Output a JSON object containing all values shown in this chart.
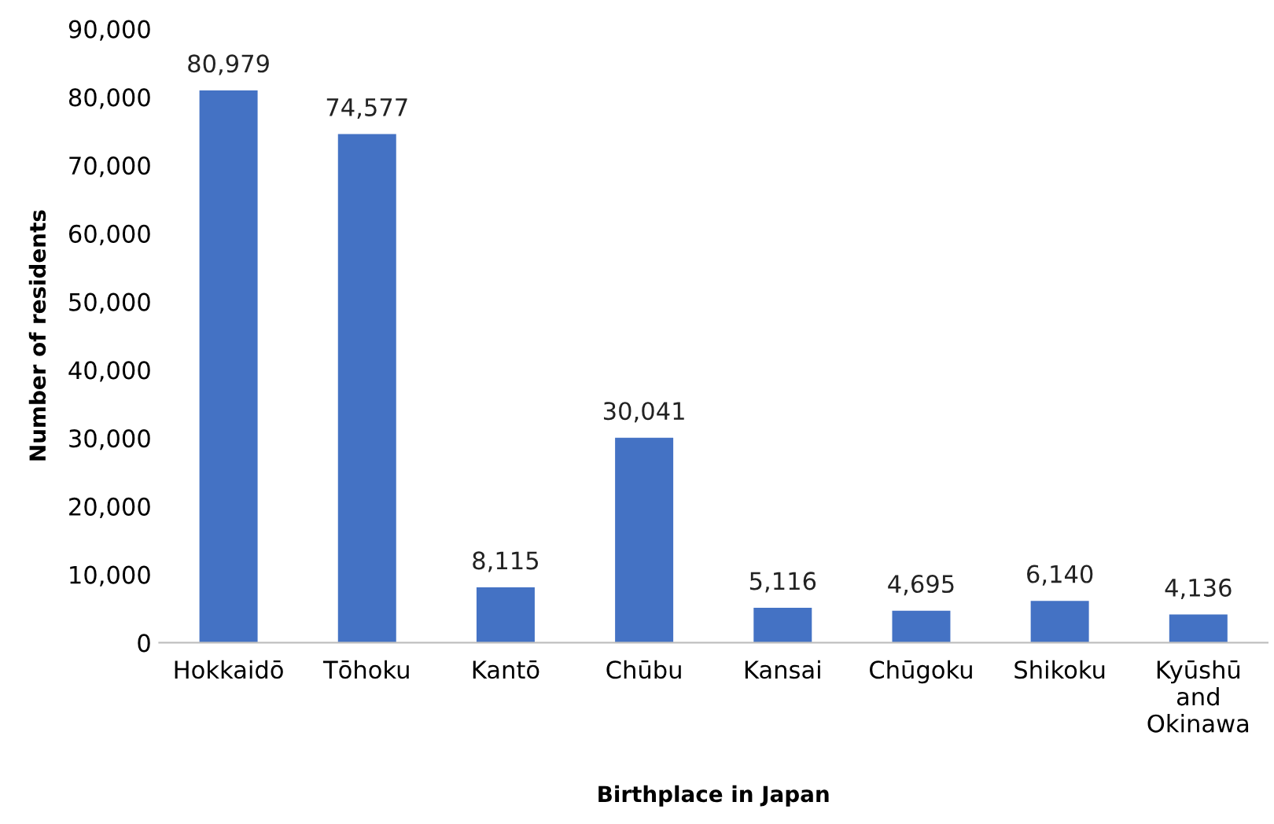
{
  "chart_data": {
    "type": "bar",
    "xlabel": "Birthplace in Japan",
    "ylabel": "Number of residents",
    "categories": [
      "Hokkaidō",
      "Tōhoku",
      "Kantō",
      "Chūbu",
      "Kansai",
      "Chūgoku",
      "Shikoku",
      "Kyūshū\nand\nOkinawa"
    ],
    "values": [
      80979,
      74577,
      8115,
      30041,
      5116,
      4695,
      6140,
      4136
    ],
    "value_labels": [
      "80,979",
      "74,577",
      "8,115",
      "30,041",
      "5,116",
      "4,695",
      "6,140",
      "4,136"
    ],
    "color": "#4472c4",
    "ylim": [
      0,
      90000
    ],
    "yticks": [
      0,
      {
        "value": 10000,
        "label": "10,000"
      },
      {
        "value": 20000,
        "label": "20,000"
      },
      {
        "value": 30000,
        "label": "30,000"
      },
      {
        "value": 40000,
        "label": "40,000"
      },
      {
        "value": 50000,
        "label": "50,000"
      },
      {
        "value": 60000,
        "label": "60,000"
      },
      {
        "value": 70000,
        "label": "70,000"
      },
      {
        "value": 80000,
        "label": "80,000"
      },
      {
        "value": 90000,
        "label": "90,000"
      }
    ],
    "grid": false,
    "legend": false
  }
}
